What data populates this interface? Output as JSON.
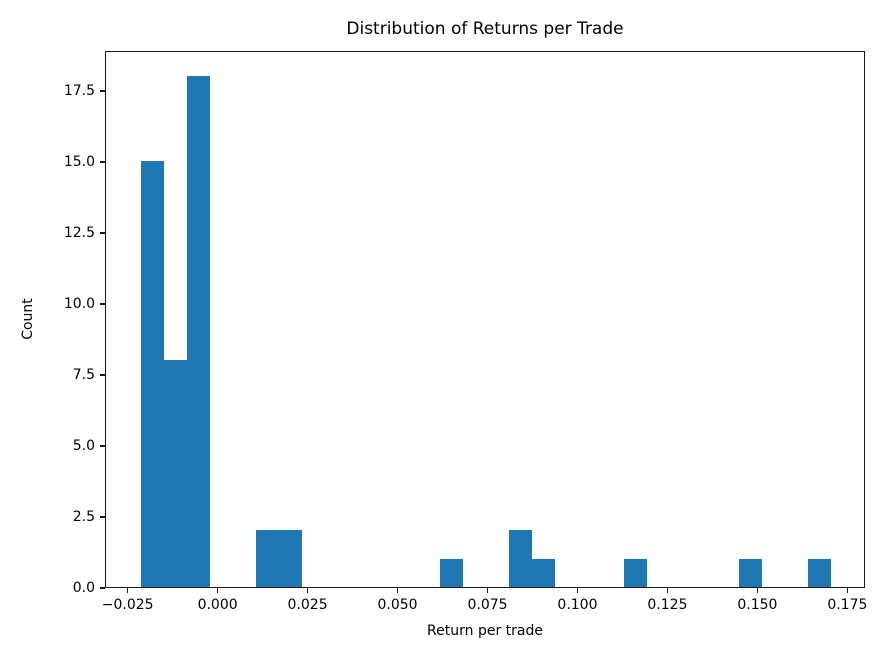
{
  "chart_data": {
    "type": "bar",
    "subtype": "histogram",
    "title": "Distribution of Returns per Trade",
    "xlabel": "Return per trade",
    "ylabel": "Count",
    "bar_color": "#1f77b4",
    "axis_color": "#1a1a1a",
    "grid": false,
    "legend": null,
    "bin_start": -0.0217,
    "bin_width": 0.0064,
    "counts": [
      15,
      8,
      18,
      0,
      0,
      2,
      2,
      0,
      0,
      0,
      0,
      0,
      0,
      1,
      0,
      0,
      2,
      1,
      0,
      0,
      0,
      1,
      0,
      0,
      0,
      0,
      1,
      0,
      0,
      1
    ],
    "total_trades": 52,
    "xlim": [
      -0.0313,
      0.1799
    ],
    "ylim": [
      0,
      18.9
    ],
    "xticks": {
      "values": [
        -0.025,
        0.0,
        0.025,
        0.05,
        0.075,
        0.1,
        0.125,
        0.15,
        0.175
      ],
      "labels": [
        "−0.025",
        "0.000",
        "0.025",
        "0.050",
        "0.075",
        "0.100",
        "0.125",
        "0.150",
        "0.175"
      ]
    },
    "yticks": {
      "values": [
        0,
        2.5,
        5,
        7.5,
        10,
        12.5,
        15,
        17.5
      ],
      "labels": [
        "0.0",
        "2.5",
        "5.0",
        "7.5",
        "10.0",
        "12.5",
        "15.0",
        "17.5"
      ]
    }
  }
}
